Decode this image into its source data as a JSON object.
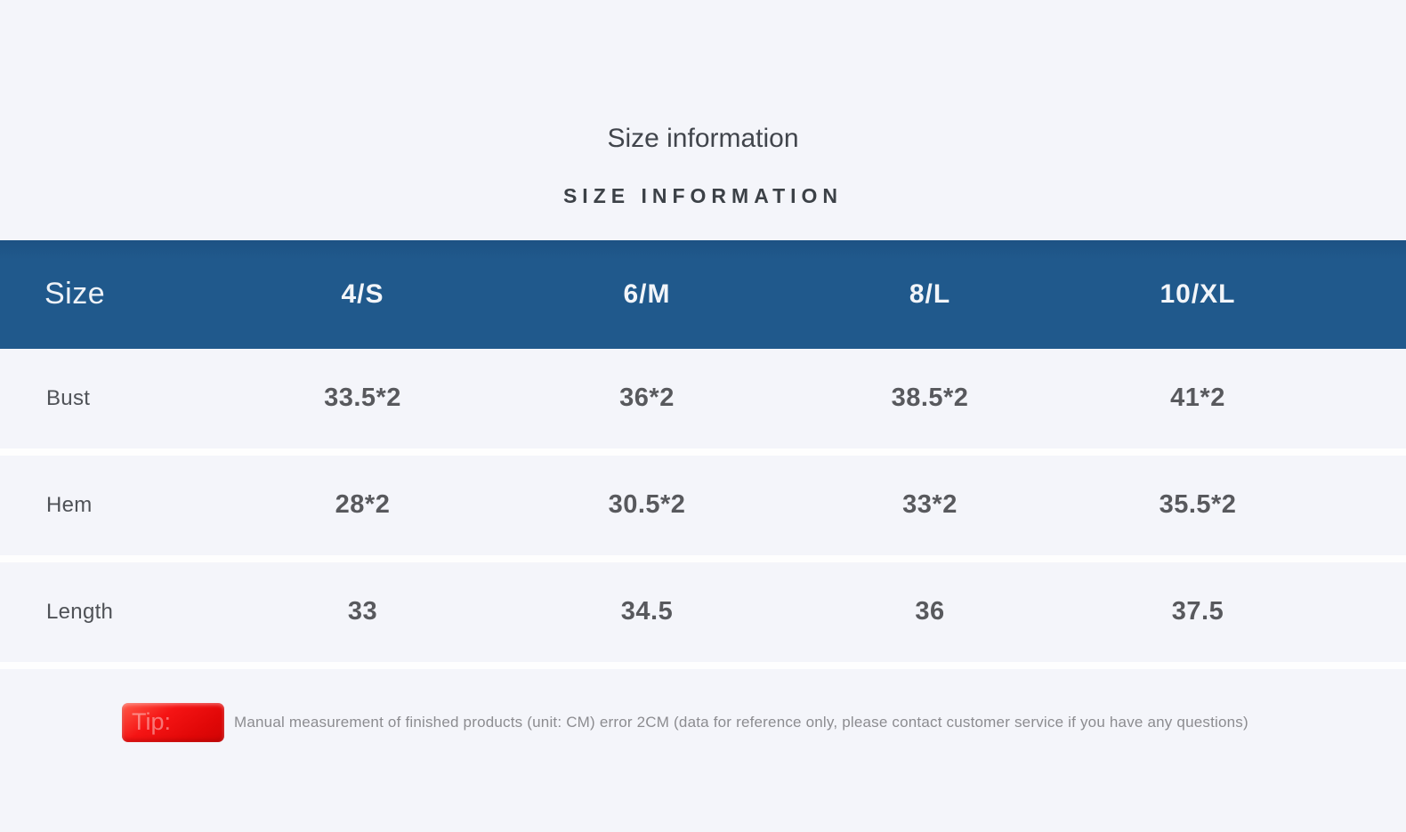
{
  "header": {
    "title": "Size information",
    "subtitle": "SIZE INFORMATION"
  },
  "table": {
    "accent_color": "#20598c",
    "header_text_color": "#f2f5f9",
    "columns": [
      "Size",
      "4/S",
      "6/M",
      "8/L",
      "10/XL"
    ],
    "rows": [
      {
        "label": "Bust",
        "values": [
          "33.5*2",
          "36*2",
          "38.5*2",
          "41*2"
        ]
      },
      {
        "label": "Hem",
        "values": [
          "28*2",
          "30.5*2",
          "33*2",
          "35.5*2"
        ]
      },
      {
        "label": "Length",
        "values": [
          "33",
          "34.5",
          "36",
          "37.5"
        ]
      }
    ]
  },
  "tip": {
    "badge_label": "Tip:",
    "badge_color": "#ee0c0c",
    "text": "Manual measurement of finished products (unit: CM) error 2CM (data for reference only, please contact customer service if you have any questions)"
  }
}
